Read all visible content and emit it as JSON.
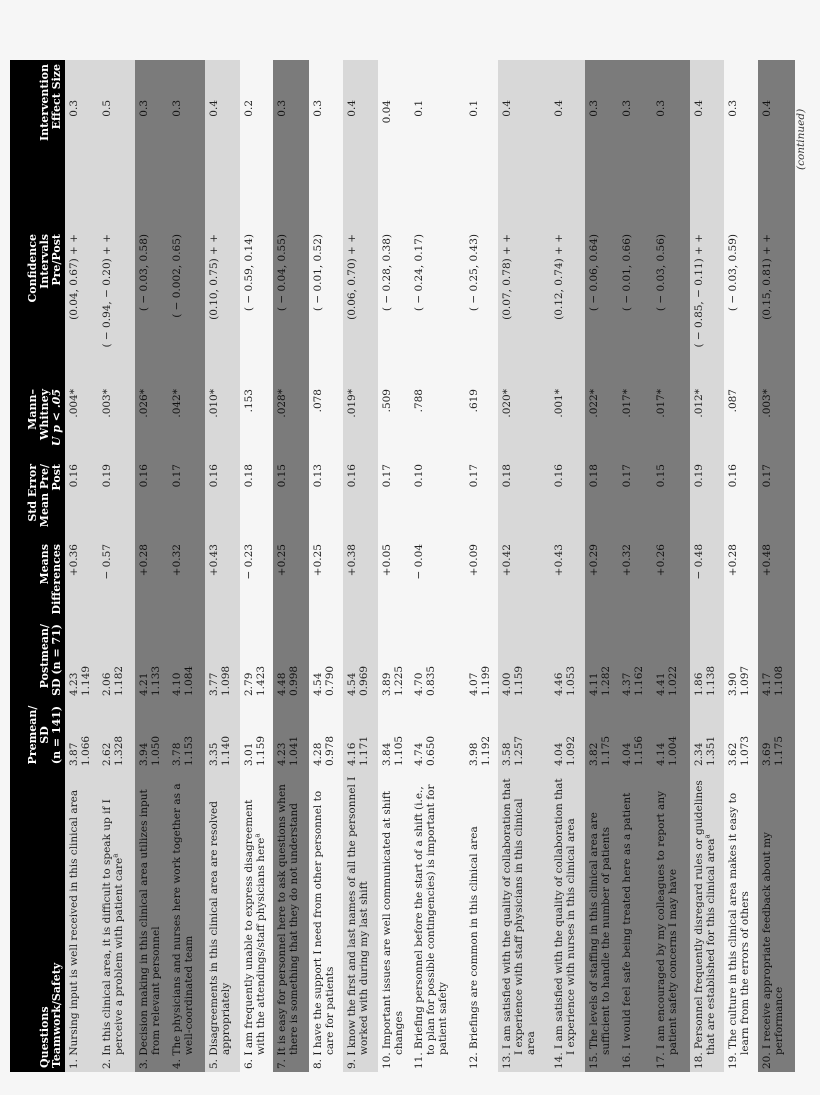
{
  "headers": {
    "questions": [
      "Questions",
      "Teamwork/Safety"
    ],
    "premean": [
      "Premean/",
      "SD",
      "(n = 141)"
    ],
    "postmean": [
      "Postmean/",
      "SD (n = 71)"
    ],
    "means_diff": [
      "Means",
      "Differences"
    ],
    "std_error": [
      "Std Error",
      "Mean Pre/",
      "Post"
    ],
    "mann_whitney": [
      "Mann–",
      "Whitney",
      "U p < .05"
    ],
    "ci": [
      "Confidence",
      "Intervals",
      "Pre/Post"
    ],
    "effect": [
      "Intervention",
      "Effect Size"
    ]
  },
  "shading_colors": {
    "light": "#d8d8d8",
    "dark": "#7b7b7b",
    "white": "#f6f6f6",
    "header": "#000000"
  },
  "rows": [
    {
      "shade": "light",
      "q": "1. Nursing input is well received in this clinical area",
      "pre": "3.87",
      "pre_sd": "1.066",
      "post": "4.23",
      "post_sd": "1.149",
      "diff": "+0.36",
      "se": "0.16",
      "p": ".004*",
      "ci": "(0.04, 0.67) + +",
      "es": "0.3"
    },
    {
      "shade": "light",
      "q": "2. In this clinical area, it is difficult to speak up if I perceive a problem with patient care",
      "sup": "a",
      "pre": "2.62",
      "pre_sd": "1.328",
      "post": "2.06",
      "post_sd": "1.182",
      "diff": "− 0.57",
      "se": "0.19",
      "p": ".003*",
      "ci": "( − 0.94, − 0.20) + +",
      "es": "0.5"
    },
    {
      "shade": "dark",
      "q": "3. Decision making in this clinical area utilizes input from relevant personnel",
      "pre": "3.94",
      "pre_sd": "1.050",
      "post": "4.21",
      "post_sd": "1.133",
      "diff": "+0.28",
      "se": "0.16",
      "p": ".026*",
      "ci": "( − 0.03, 0.58)",
      "es": "0.3"
    },
    {
      "shade": "dark",
      "q": "4. The physicians and nurses here work together as a well-coordinated team",
      "pre": "3.78",
      "pre_sd": "1.153",
      "post": "4.10",
      "post_sd": "1.084",
      "diff": "+0.32",
      "se": "0.17",
      "p": ".042*",
      "ci": "( − 0.002, 0.65)",
      "es": "0.3"
    },
    {
      "shade": "light",
      "q": "5. Disagreements in this clinical area are resolved appropriately",
      "pre": "3.35",
      "pre_sd": "1.140",
      "post": "3.77",
      "post_sd": "1.098",
      "diff": "+0.43",
      "se": "0.16",
      "p": ".010*",
      "ci": "(0.10, 0.75) + +",
      "es": "0.4"
    },
    {
      "shade": "white",
      "q": "6. I am frequently unable to express disagreement with the attendings/staff physicians here",
      "sup": "a",
      "pre": "3.01",
      "pre_sd": "1.159",
      "post": "2.79",
      "post_sd": "1.423",
      "diff": "− 0.23",
      "se": "0.18",
      "p": ".153",
      "ci": "( − 0.59, 0.14)",
      "es": "0.2"
    },
    {
      "shade": "dark",
      "q": "7. It is easy for personnel here to ask questions when there is something that they do not understand",
      "pre": "4.23",
      "pre_sd": "1.041",
      "post": "4.48",
      "post_sd": "0.998",
      "diff": "+0.25",
      "se": "0.15",
      "p": ".028*",
      "ci": "( − 0.04, 0.55)",
      "es": "0.3"
    },
    {
      "shade": "white",
      "q": "8. I have the support I need from other personnel to care for patients",
      "pre": "4.28",
      "pre_sd": "0.978",
      "post": "4.54",
      "post_sd": "0.790",
      "diff": "+0.25",
      "se": "0.13",
      "p": ".078",
      "ci": "( − 0.01, 0.52)",
      "es": "0.3"
    },
    {
      "shade": "light",
      "q": "9. I know the first and last names of all the personnel I worked with during my last shift",
      "pre": "4.16",
      "pre_sd": "1.171",
      "post": "4.54",
      "post_sd": "0.969",
      "diff": "+0.38",
      "se": "0.16",
      "p": ".019*",
      "ci": "(0.06, 0.70) + +",
      "es": "0.4"
    },
    {
      "shade": "white",
      "q": "10. Important issues are well communicated at shift changes",
      "pre": "3.84",
      "pre_sd": "1.105",
      "post": "3.89",
      "post_sd": "1.225",
      "diff": "+0.05",
      "se": "0.17",
      "p": ".509",
      "ci": "( − 0.28, 0.38)",
      "es": "0.04"
    },
    {
      "shade": "white",
      "q": "11. Briefing personnel before the start of a shift (i.e., to plan for possible contingencies) is important for patient safety",
      "pre": "4.74",
      "pre_sd": "0.650",
      "post": "4.70",
      "post_sd": "0.835",
      "diff": "− 0.04",
      "se": "0.10",
      "p": ".788",
      "ci": "( − 0.24, 0.17)",
      "es": "0.1"
    },
    {
      "shade": "white",
      "q": "12. Briefings are common in this clinical area",
      "pre": "3.98",
      "pre_sd": "1.192",
      "post": "4.07",
      "post_sd": "1.199",
      "diff": "+0.09",
      "se": "0.17",
      "p": ".619",
      "ci": "( − 0.25, 0.43)",
      "es": "0.1"
    },
    {
      "shade": "light",
      "q": "13. I am satisfied with the quality of collaboration that I experience with staff physicians in this clinical area",
      "pre": "3.58",
      "pre_sd": "1.257",
      "post": "4.00",
      "post_sd": "1.159",
      "diff": "+0.42",
      "se": "0.18",
      "p": ".020*",
      "ci": "(0.07, 0.78) + +",
      "es": "0.4"
    },
    {
      "shade": "light",
      "q": "14. I am satisfied with the quality of collaboration that I experience with nurses in this clinical area",
      "pre": "4.04",
      "pre_sd": "1.092",
      "post": "4.46",
      "post_sd": "1.053",
      "diff": "+0.43",
      "se": "0.16",
      "p": ".001*",
      "ci": "(0.12, 0.74) + +",
      "es": "0.4"
    },
    {
      "shade": "dark",
      "q": "15. The levels of staffing in this clinical area are sufficient to handle the number of patients",
      "pre": "3.82",
      "pre_sd": "1.175",
      "post": "4.11",
      "post_sd": "1.282",
      "diff": "+0.29",
      "se": "0.18",
      "p": ".022*",
      "ci": "( − 0.06, 0.64)",
      "es": "0.3"
    },
    {
      "shade": "dark",
      "q": "16. I would feel safe being treated here as a patient",
      "pre": "4.04",
      "pre_sd": "1.156",
      "post": "4.37",
      "post_sd": "1.162",
      "diff": "+0.32",
      "se": "0.17",
      "p": ".017*",
      "ci": "( − 0.01, 0.66)",
      "es": "0.3"
    },
    {
      "shade": "dark",
      "q": "17. I am encouraged by my colleagues to report any patient safety concerns I may have",
      "pre": "4.14",
      "pre_sd": "1.004",
      "post": "4.41",
      "post_sd": "1.022",
      "diff": "+0.26",
      "se": "0.15",
      "p": ".017*",
      "ci": "( − 0.03, 0.56)",
      "es": "0.3"
    },
    {
      "shade": "light",
      "q": "18. Personnel frequently disregard rules or guidelines that are established for this clinical area",
      "sup": "a",
      "pre": "2.34",
      "pre_sd": "1.351",
      "post": "1.86",
      "post_sd": "1.138",
      "diff": "− 0.48",
      "se": "0.19",
      "p": ".012*",
      "ci": "( − 0.85, − 0.11) + +",
      "es": "0.4"
    },
    {
      "shade": "white",
      "q": "19. The culture in this clinical area makes it easy to learn from the errors of others",
      "pre": "3.62",
      "pre_sd": "1.073",
      "post": "3.90",
      "post_sd": "1.097",
      "diff": "+0.28",
      "se": "0.16",
      "p": ".087",
      "ci": "( − 0.03, 0.59)",
      "es": "0.3"
    },
    {
      "shade": "dark",
      "q": "20. I receive appropriate feedback about my performance",
      "pre": "3.69",
      "pre_sd": "1.175",
      "post": "4.17",
      "post_sd": "1.108",
      "diff": "+0.48",
      "se": "0.17",
      "p": ".003*",
      "ci": "(0.15, 0.81) + +",
      "es": "0.4"
    }
  ],
  "footer": {
    "continued": "(continued)"
  }
}
